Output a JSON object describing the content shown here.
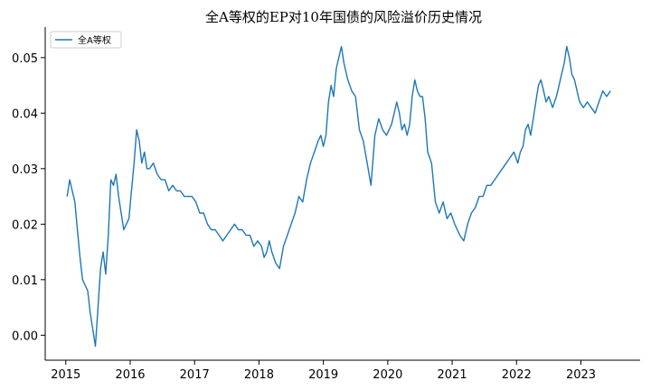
{
  "chart_data": {
    "type": "line",
    "title": "全A等权的EP对10年国债的风险溢价历史情况",
    "xlabel": "",
    "ylabel": "",
    "xlim": [
      2014.68,
      2023.92
    ],
    "ylim": [
      -0.0045,
      0.0555
    ],
    "x_ticks": [
      "2015",
      "2016",
      "2017",
      "2018",
      "2019",
      "2020",
      "2021",
      "2022",
      "2023"
    ],
    "y_ticks": [
      "0.00",
      "0.01",
      "0.02",
      "0.03",
      "0.04",
      "0.05"
    ],
    "legend_position": "top-left",
    "grid": false,
    "series": [
      {
        "name": "全A等权",
        "color": "#1f77b4",
        "x": [
          2015.02,
          2015.06,
          2015.1,
          2015.14,
          2015.18,
          2015.22,
          2015.26,
          2015.3,
          2015.34,
          2015.38,
          2015.42,
          2015.46,
          2015.5,
          2015.54,
          2015.58,
          2015.62,
          2015.66,
          2015.7,
          2015.74,
          2015.78,
          2015.82,
          2015.86,
          2015.9,
          2015.94,
          2015.98,
          2016.02,
          2016.06,
          2016.1,
          2016.14,
          2016.18,
          2016.22,
          2016.26,
          2016.3,
          2016.36,
          2016.42,
          2016.48,
          2016.54,
          2016.6,
          2016.66,
          2016.72,
          2016.78,
          2016.84,
          2016.9,
          2016.96,
          2017.02,
          2017.08,
          2017.14,
          2017.2,
          2017.26,
          2017.32,
          2017.38,
          2017.44,
          2017.5,
          2017.56,
          2017.62,
          2017.68,
          2017.74,
          2017.8,
          2017.86,
          2017.92,
          2017.98,
          2018.04,
          2018.08,
          2018.12,
          2018.16,
          2018.2,
          2018.26,
          2018.32,
          2018.38,
          2018.44,
          2018.5,
          2018.56,
          2018.62,
          2018.68,
          2018.74,
          2018.8,
          2018.86,
          2018.92,
          2018.96,
          2019.0,
          2019.04,
          2019.08,
          2019.12,
          2019.16,
          2019.2,
          2019.24,
          2019.28,
          2019.32,
          2019.38,
          2019.44,
          2019.5,
          2019.56,
          2019.62,
          2019.68,
          2019.74,
          2019.8,
          2019.86,
          2019.92,
          2019.98,
          2020.02,
          2020.06,
          2020.1,
          2020.14,
          2020.18,
          2020.22,
          2020.26,
          2020.3,
          2020.34,
          2020.38,
          2020.42,
          2020.46,
          2020.5,
          2020.54,
          2020.58,
          2020.62,
          2020.68,
          2020.74,
          2020.8,
          2020.86,
          2020.92,
          2020.98,
          2021.04,
          2021.08,
          2021.12,
          2021.18,
          2021.24,
          2021.3,
          2021.36,
          2021.42,
          2021.48,
          2021.54,
          2021.6,
          2021.66,
          2021.72,
          2021.78,
          2021.84,
          2021.9,
          2021.96,
          2022.02,
          2022.06,
          2022.1,
          2022.14,
          2022.18,
          2022.22,
          2022.26,
          2022.3,
          2022.34,
          2022.38,
          2022.42,
          2022.46,
          2022.5,
          2022.56,
          2022.62,
          2022.66,
          2022.7,
          2022.74,
          2022.78,
          2022.82,
          2022.86,
          2022.9,
          2022.94,
          2022.98,
          2023.04,
          2023.1,
          2023.16,
          2023.22,
          2023.28,
          2023.34,
          2023.4,
          2023.46
        ],
        "y": [
          0.025,
          0.028,
          0.026,
          0.024,
          0.019,
          0.014,
          0.01,
          0.009,
          0.008,
          0.004,
          0.001,
          -0.002,
          0.005,
          0.012,
          0.015,
          0.011,
          0.018,
          0.028,
          0.027,
          0.029,
          0.025,
          0.022,
          0.019,
          0.02,
          0.021,
          0.026,
          0.031,
          0.037,
          0.035,
          0.031,
          0.033,
          0.03,
          0.03,
          0.031,
          0.029,
          0.028,
          0.028,
          0.026,
          0.027,
          0.026,
          0.026,
          0.025,
          0.025,
          0.025,
          0.024,
          0.022,
          0.022,
          0.02,
          0.019,
          0.019,
          0.018,
          0.017,
          0.018,
          0.019,
          0.02,
          0.019,
          0.019,
          0.018,
          0.018,
          0.016,
          0.017,
          0.016,
          0.014,
          0.015,
          0.017,
          0.015,
          0.013,
          0.012,
          0.016,
          0.018,
          0.02,
          0.022,
          0.025,
          0.024,
          0.028,
          0.031,
          0.033,
          0.035,
          0.036,
          0.034,
          0.036,
          0.042,
          0.045,
          0.043,
          0.048,
          0.05,
          0.052,
          0.049,
          0.046,
          0.044,
          0.043,
          0.037,
          0.035,
          0.031,
          0.027,
          0.036,
          0.039,
          0.037,
          0.036,
          0.037,
          0.038,
          0.04,
          0.042,
          0.04,
          0.037,
          0.038,
          0.036,
          0.038,
          0.043,
          0.046,
          0.044,
          0.043,
          0.043,
          0.039,
          0.033,
          0.031,
          0.024,
          0.022,
          0.024,
          0.021,
          0.022,
          0.02,
          0.019,
          0.018,
          0.017,
          0.02,
          0.022,
          0.023,
          0.025,
          0.025,
          0.027,
          0.027,
          0.028,
          0.029,
          0.03,
          0.031,
          0.032,
          0.033,
          0.031,
          0.033,
          0.034,
          0.037,
          0.038,
          0.036,
          0.039,
          0.042,
          0.045,
          0.046,
          0.044,
          0.042,
          0.043,
          0.041,
          0.043,
          0.045,
          0.047,
          0.049,
          0.052,
          0.05,
          0.047,
          0.046,
          0.044,
          0.042,
          0.041,
          0.042,
          0.041,
          0.04,
          0.042,
          0.044,
          0.043,
          0.044
        ]
      }
    ]
  }
}
